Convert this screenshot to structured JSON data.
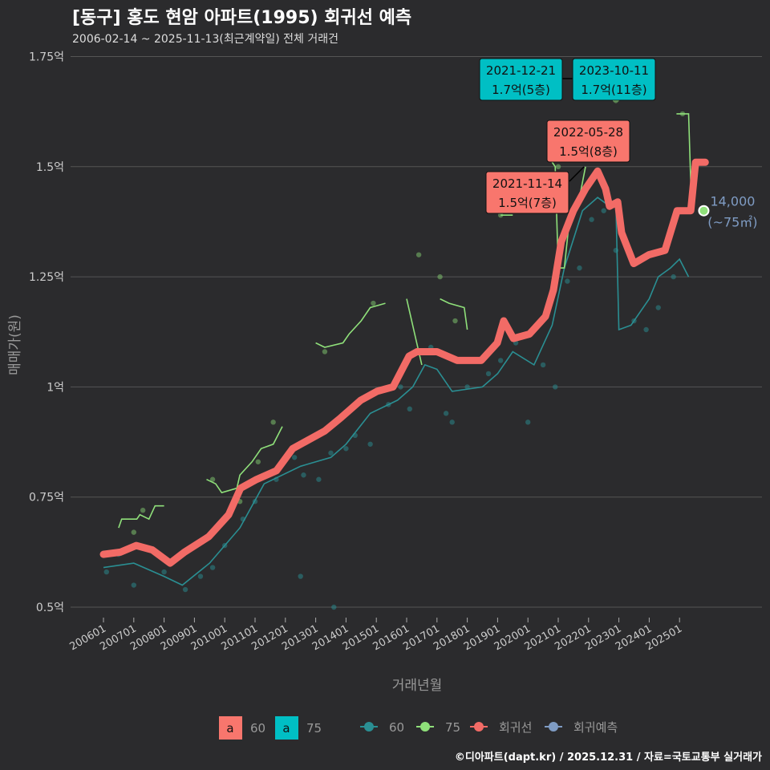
{
  "title": "[동구] 홍도 현암 아파트(1995) 회귀선 예측",
  "subtitle": "2006-02-14 ~ 2025-11-13(최근계약일) 전체 거래건",
  "caption": "©디아파트(dapt.kr) / 2025.12.31 / 자료=국토교통부 실거래가",
  "chart_data": {
    "type": "line",
    "xlabel": "거래년월",
    "ylabel": "매매가(원)",
    "ylim": [
      0.45,
      1.78
    ],
    "xlim": [
      2005.5,
      2026.5
    ],
    "yticks": [
      {
        "v": 0.5,
        "label": "0.5억"
      },
      {
        "v": 0.75,
        "label": "0.75억"
      },
      {
        "v": 1.0,
        "label": "1억"
      },
      {
        "v": 1.25,
        "label": "1.25억"
      },
      {
        "v": 1.5,
        "label": "1.5억"
      },
      {
        "v": 1.75,
        "label": "1.75억"
      }
    ],
    "xticks": [
      "200601",
      "200701",
      "200801",
      "200901",
      "201001",
      "201101",
      "201201",
      "201301",
      "201401",
      "201501",
      "201601",
      "201701",
      "201801",
      "201901",
      "202001",
      "202101",
      "202201",
      "202301",
      "202401",
      "202501"
    ],
    "colors": {
      "s60": "#2a8f93",
      "s75": "#8fe07a",
      "reg": "#f26b66",
      "pred": "#7f9cc4",
      "box60": "#f8766d",
      "box75": "#00bfc4"
    },
    "regression": [
      [
        2006.0,
        0.62
      ],
      [
        2006.56,
        0.625
      ],
      [
        2007.08,
        0.64
      ],
      [
        2007.61,
        0.63
      ],
      [
        2008.2,
        0.6
      ],
      [
        2008.67,
        0.625
      ],
      [
        2009.47,
        0.66
      ],
      [
        2010.13,
        0.71
      ],
      [
        2010.52,
        0.77
      ],
      [
        2011.05,
        0.79
      ],
      [
        2011.71,
        0.81
      ],
      [
        2012.24,
        0.86
      ],
      [
        2012.77,
        0.88
      ],
      [
        2013.3,
        0.9
      ],
      [
        2013.83,
        0.93
      ],
      [
        2014.49,
        0.97
      ],
      [
        2015.02,
        0.99
      ],
      [
        2015.55,
        1.0
      ],
      [
        2016.08,
        1.07
      ],
      [
        2016.34,
        1.08
      ],
      [
        2017.0,
        1.08
      ],
      [
        2017.67,
        1.06
      ],
      [
        2018.46,
        1.06
      ],
      [
        2018.99,
        1.1
      ],
      [
        2019.2,
        1.15
      ],
      [
        2019.52,
        1.11
      ],
      [
        2020.05,
        1.12
      ],
      [
        2020.58,
        1.16
      ],
      [
        2020.84,
        1.22
      ],
      [
        2021.1,
        1.33
      ],
      [
        2021.5,
        1.4
      ],
      [
        2021.9,
        1.45
      ],
      [
        2022.3,
        1.49
      ],
      [
        2022.56,
        1.45
      ],
      [
        2022.69,
        1.41
      ],
      [
        2022.96,
        1.42
      ],
      [
        2023.09,
        1.35
      ],
      [
        2023.49,
        1.28
      ],
      [
        2023.99,
        1.3
      ],
      [
        2024.52,
        1.31
      ],
      [
        2024.92,
        1.4
      ],
      [
        2025.37,
        1.4
      ],
      [
        2025.53,
        1.51
      ],
      [
        2025.85,
        1.51
      ]
    ],
    "series": [
      {
        "name": "60",
        "values": [
          [
            2006.0,
            0.59
          ],
          [
            2007.0,
            0.6
          ],
          [
            2008.0,
            0.57
          ],
          [
            2008.6,
            0.55
          ],
          [
            2009.5,
            0.6
          ],
          [
            2010.5,
            0.68
          ],
          [
            2011.3,
            0.78
          ],
          [
            2012.5,
            0.82
          ],
          [
            2013.5,
            0.84
          ],
          [
            2014.0,
            0.87
          ],
          [
            2014.8,
            0.94
          ],
          [
            2015.7,
            0.97
          ],
          [
            2016.2,
            1.0
          ],
          [
            2016.6,
            1.05
          ],
          [
            2017.0,
            1.04
          ],
          [
            2017.5,
            0.99
          ],
          [
            2018.5,
            1.0
          ],
          [
            2019.0,
            1.03
          ],
          [
            2019.5,
            1.08
          ],
          [
            2020.2,
            1.05
          ],
          [
            2020.8,
            1.14
          ],
          [
            2021.2,
            1.27
          ],
          [
            2021.8,
            1.4
          ],
          [
            2022.3,
            1.43
          ],
          [
            2022.7,
            1.41
          ],
          [
            2022.9,
            1.42
          ],
          [
            2023.0,
            1.13
          ],
          [
            2023.4,
            1.14
          ],
          [
            2024.0,
            1.2
          ],
          [
            2024.3,
            1.25
          ],
          [
            2024.7,
            1.27
          ],
          [
            2025.0,
            1.29
          ],
          [
            2025.3,
            1.25
          ]
        ]
      },
      {
        "name": "75",
        "segments": [
          [
            [
              2006.5,
              0.68
            ],
            [
              2006.6,
              0.7
            ],
            [
              2007.1,
              0.7
            ],
            [
              2007.2,
              0.71
            ],
            [
              2007.5,
              0.7
            ],
            [
              2007.7,
              0.73
            ],
            [
              2008.0,
              0.73
            ]
          ],
          [
            [
              2009.4,
              0.79
            ],
            [
              2009.7,
              0.78
            ],
            [
              2009.9,
              0.76
            ],
            [
              2010.4,
              0.77
            ],
            [
              2010.5,
              0.8
            ],
            [
              2010.9,
              0.83
            ],
            [
              2011.2,
              0.86
            ],
            [
              2011.6,
              0.87
            ],
            [
              2011.9,
              0.91
            ]
          ],
          [
            [
              2013.0,
              1.1
            ],
            [
              2013.3,
              1.09
            ],
            [
              2013.9,
              1.1
            ],
            [
              2014.1,
              1.12
            ],
            [
              2014.5,
              1.15
            ],
            [
              2014.8,
              1.18
            ],
            [
              2015.3,
              1.19
            ]
          ],
          [
            [
              2016.0,
              1.2
            ],
            [
              2016.3,
              1.11
            ],
            [
              2016.5,
              1.05
            ]
          ],
          [
            [
              2017.1,
              1.2
            ],
            [
              2017.4,
              1.19
            ],
            [
              2017.9,
              1.18
            ],
            [
              2018.0,
              1.13
            ]
          ],
          [
            [
              2019.1,
              1.39
            ],
            [
              2019.5,
              1.39
            ]
          ],
          [
            [
              2020.7,
              1.52
            ],
            [
              2020.9,
              1.5
            ],
            [
              2021.0,
              1.27
            ],
            [
              2021.2,
              1.27
            ],
            [
              2021.4,
              1.4
            ],
            [
              2021.7,
              1.43
            ],
            [
              2021.9,
              1.5
            ]
          ],
          [
            [
              2022.8,
              1.65
            ],
            [
              2023.0,
              1.65
            ]
          ],
          [
            [
              2024.9,
              1.62
            ],
            [
              2025.3,
              1.62
            ],
            [
              2025.4,
              1.4
            ]
          ]
        ]
      }
    ],
    "points60": [
      [
        2006.1,
        0.58
      ],
      [
        2006.5,
        0.62
      ],
      [
        2007.0,
        0.55
      ],
      [
        2007.5,
        0.63
      ],
      [
        2008.0,
        0.58
      ],
      [
        2008.7,
        0.54
      ],
      [
        2009.2,
        0.57
      ],
      [
        2009.6,
        0.59
      ],
      [
        2010.0,
        0.64
      ],
      [
        2010.6,
        0.7
      ],
      [
        2011.0,
        0.74
      ],
      [
        2011.7,
        0.79
      ],
      [
        2012.3,
        0.84
      ],
      [
        2012.6,
        0.8
      ],
      [
        2013.1,
        0.79
      ],
      [
        2013.5,
        0.85
      ],
      [
        2014.0,
        0.86
      ],
      [
        2014.3,
        0.89
      ],
      [
        2014.8,
        0.87
      ],
      [
        2015.4,
        0.96
      ],
      [
        2015.8,
        1.0
      ],
      [
        2016.1,
        0.95
      ],
      [
        2016.8,
        1.09
      ],
      [
        2017.3,
        0.94
      ],
      [
        2017.5,
        0.92
      ],
      [
        2018.0,
        1.0
      ],
      [
        2018.7,
        1.03
      ],
      [
        2019.1,
        1.06
      ],
      [
        2019.6,
        1.1
      ],
      [
        2020.0,
        0.92
      ],
      [
        2020.5,
        1.05
      ],
      [
        2020.9,
        1.0
      ],
      [
        2021.3,
        1.24
      ],
      [
        2021.7,
        1.27
      ],
      [
        2022.1,
        1.38
      ],
      [
        2022.5,
        1.4
      ],
      [
        2022.9,
        1.31
      ],
      [
        2023.5,
        1.15
      ],
      [
        2023.9,
        1.13
      ],
      [
        2024.3,
        1.18
      ],
      [
        2024.8,
        1.25
      ],
      [
        2012.5,
        0.57
      ],
      [
        2013.6,
        0.5
      ]
    ],
    "points75": [
      [
        2007.0,
        0.67
      ],
      [
        2007.3,
        0.72
      ],
      [
        2009.6,
        0.79
      ],
      [
        2010.5,
        0.74
      ],
      [
        2011.1,
        0.83
      ],
      [
        2011.6,
        0.92
      ],
      [
        2013.3,
        1.08
      ],
      [
        2014.9,
        1.19
      ],
      [
        2016.4,
        1.3
      ],
      [
        2017.1,
        1.25
      ],
      [
        2017.6,
        1.15
      ],
      [
        2019.1,
        1.39
      ],
      [
        2021.0,
        1.5
      ],
      [
        2022.9,
        1.65
      ],
      [
        2025.1,
        1.62
      ]
    ],
    "prediction": {
      "x": 2025.8,
      "y": 1.4,
      "label": "14,000",
      "sublabel": "(~75㎡)"
    },
    "annotations": [
      {
        "date": "2021-12-21",
        "text": "1.7억(5층)",
        "type": "75"
      },
      {
        "date": "2023-10-11",
        "text": "1.7억(11층)",
        "type": "75"
      },
      {
        "date": "2022-05-28",
        "text": "1.5억(8층)",
        "type": "60"
      },
      {
        "date": "2021-11-14",
        "text": "1.5억(7층)",
        "type": "60"
      }
    ],
    "legend": {
      "box": [
        "a",
        "60",
        "a",
        "75"
      ],
      "lines": [
        "60",
        "75",
        "회귀선",
        "회귀예측"
      ]
    }
  }
}
